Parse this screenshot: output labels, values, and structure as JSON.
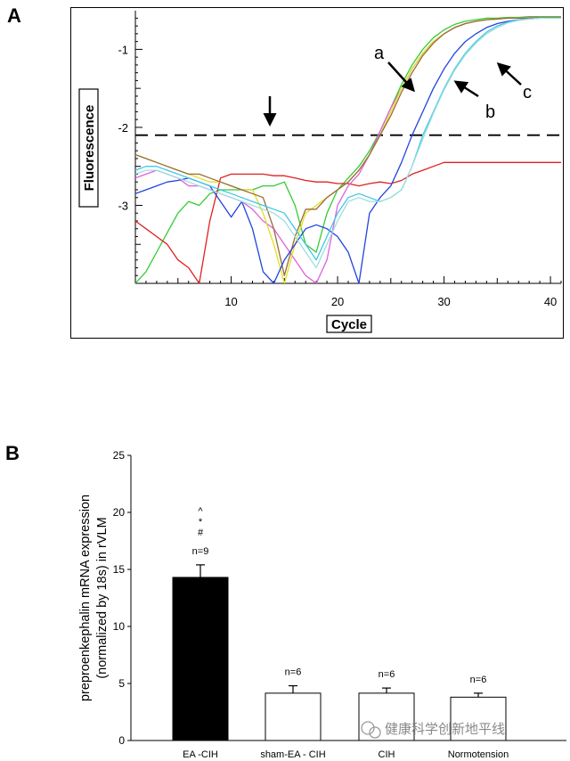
{
  "panels": {
    "a": "A",
    "b": "B"
  },
  "watermark": {
    "text": "健康科学创新地平线"
  },
  "chart_data": [
    {
      "type": "line",
      "xlabel": "Cycle",
      "ylabel": "Fluorescence",
      "x_ticks": [
        10,
        20,
        30,
        40
      ],
      "y_ticks": [
        -1,
        -2,
        -3
      ],
      "xlim": [
        1,
        41
      ],
      "ylim": [
        -4.0,
        -0.55
      ],
      "threshold": -2.1,
      "annotations": [
        "a",
        "b",
        "c"
      ],
      "series": [
        {
          "color": "#33cc33",
          "x": [
            1,
            2,
            3,
            4,
            5,
            6,
            7,
            8,
            9,
            10,
            11,
            12,
            13,
            14,
            15,
            16,
            17,
            18,
            19,
            20,
            21,
            22,
            23,
            24,
            25,
            26,
            27,
            28,
            29,
            30,
            31,
            32,
            33,
            34,
            35,
            36,
            37,
            38,
            39,
            40,
            41
          ],
          "values": [
            -4.0,
            -3.85,
            -3.6,
            -3.35,
            -3.1,
            -2.95,
            -3.0,
            -2.85,
            -2.8,
            -2.8,
            -2.8,
            -2.8,
            -2.75,
            -2.75,
            -2.7,
            -3.0,
            -3.5,
            -3.6,
            -3.1,
            -2.8,
            -2.65,
            -2.5,
            -2.3,
            -2.05,
            -1.75,
            -1.45,
            -1.2,
            -1.0,
            -0.85,
            -0.75,
            -0.68,
            -0.64,
            -0.62,
            -0.6,
            -0.6,
            -0.59,
            -0.59,
            -0.58,
            -0.58,
            -0.58,
            -0.58
          ]
        },
        {
          "color": "#e02020",
          "x": [
            1,
            2,
            3,
            4,
            5,
            6,
            7,
            8,
            9,
            10,
            11,
            12,
            13,
            14,
            15,
            16,
            17,
            18,
            19,
            20,
            21,
            22,
            23,
            24,
            25,
            26,
            27,
            28,
            29,
            30,
            31,
            32,
            33,
            34,
            35,
            36,
            37,
            38,
            39,
            40,
            41
          ],
          "values": [
            -3.2,
            -3.3,
            -3.4,
            -3.5,
            -3.7,
            -3.8,
            -4.0,
            -3.2,
            -2.65,
            -2.6,
            -2.6,
            -2.6,
            -2.6,
            -2.62,
            -2.62,
            -2.65,
            -2.68,
            -2.7,
            -2.7,
            -2.72,
            -2.72,
            -2.75,
            -2.72,
            -2.7,
            -2.72,
            -2.68,
            -2.6,
            -2.55,
            -2.5,
            -2.45,
            -2.45,
            -2.45,
            -2.45,
            -2.45,
            -2.45,
            -2.45,
            -2.45,
            -2.45,
            -2.45,
            -2.45,
            -2.45
          ]
        },
        {
          "color": "#e060e0",
          "x": [
            1,
            2,
            3,
            4,
            5,
            6,
            7,
            8,
            9,
            10,
            11,
            12,
            13,
            14,
            15,
            16,
            17,
            18,
            19,
            20,
            21,
            22,
            23,
            24,
            25,
            26,
            27,
            28,
            29,
            30,
            31,
            32,
            33,
            34,
            35,
            36,
            37,
            38,
            39,
            40,
            41
          ],
          "values": [
            -2.65,
            -2.6,
            -2.55,
            -2.6,
            -2.65,
            -2.75,
            -2.75,
            -2.8,
            -2.85,
            -2.9,
            -2.95,
            -3.05,
            -3.2,
            -3.3,
            -3.5,
            -3.7,
            -3.9,
            -4.0,
            -3.7,
            -3.0,
            -2.75,
            -2.6,
            -2.35,
            -2.05,
            -1.75,
            -1.5,
            -1.25,
            -1.05,
            -0.9,
            -0.8,
            -0.72,
            -0.67,
            -0.64,
            -0.62,
            -0.61,
            -0.6,
            -0.6,
            -0.59,
            -0.59,
            -0.59,
            -0.59
          ]
        },
        {
          "color": "#e0e020",
          "x": [
            1,
            2,
            3,
            4,
            5,
            6,
            7,
            8,
            9,
            10,
            11,
            12,
            13,
            14,
            15,
            16,
            17,
            18,
            19,
            20,
            21,
            22,
            23,
            24,
            25,
            26,
            27,
            28,
            29,
            30,
            31,
            32,
            33,
            34,
            35,
            36,
            37,
            38,
            39,
            40,
            41
          ],
          "values": [
            -2.35,
            -2.4,
            -2.45,
            -2.5,
            -2.55,
            -2.6,
            -2.65,
            -2.7,
            -2.7,
            -2.75,
            -2.8,
            -2.8,
            -3.1,
            -3.5,
            -4.0,
            -3.5,
            -3.1,
            -3.0,
            -2.9,
            -2.8,
            -2.7,
            -2.55,
            -2.35,
            -2.1,
            -1.8,
            -1.5,
            -1.25,
            -1.05,
            -0.9,
            -0.8,
            -0.72,
            -0.67,
            -0.64,
            -0.62,
            -0.61,
            -0.6,
            -0.6,
            -0.6,
            -0.59,
            -0.59,
            -0.59
          ]
        },
        {
          "color": "#9a6a3a",
          "x": [
            1,
            2,
            3,
            4,
            5,
            6,
            7,
            8,
            9,
            10,
            11,
            12,
            13,
            14,
            15,
            16,
            17,
            18,
            19,
            20,
            21,
            22,
            23,
            24,
            25,
            26,
            27,
            28,
            29,
            30,
            31,
            32,
            33,
            34,
            35,
            36,
            37,
            38,
            39,
            40,
            41
          ],
          "values": [
            -2.35,
            -2.4,
            -2.45,
            -2.5,
            -2.55,
            -2.6,
            -2.6,
            -2.65,
            -2.7,
            -2.75,
            -2.8,
            -2.85,
            -2.9,
            -3.3,
            -3.9,
            -3.4,
            -3.05,
            -3.05,
            -2.9,
            -2.8,
            -2.7,
            -2.55,
            -2.35,
            -2.1,
            -1.85,
            -1.55,
            -1.3,
            -1.08,
            -0.92,
            -0.8,
            -0.72,
            -0.67,
            -0.64,
            -0.62,
            -0.61,
            -0.6,
            -0.6,
            -0.6,
            -0.59,
            -0.59,
            -0.59
          ]
        },
        {
          "color": "#2244dd",
          "x": [
            1,
            2,
            3,
            4,
            5,
            6,
            7,
            8,
            9,
            10,
            11,
            12,
            13,
            14,
            15,
            16,
            17,
            18,
            19,
            20,
            21,
            22,
            23,
            24,
            25,
            26,
            27,
            28,
            29,
            30,
            31,
            32,
            33,
            34,
            35,
            36,
            37,
            38,
            39,
            40,
            41
          ],
          "values": [
            -2.85,
            -2.8,
            -2.75,
            -2.7,
            -2.68,
            -2.65,
            -2.7,
            -2.75,
            -2.95,
            -3.15,
            -2.95,
            -3.3,
            -3.85,
            -4.0,
            -3.7,
            -3.5,
            -3.3,
            -3.25,
            -3.3,
            -3.4,
            -3.6,
            -4.0,
            -3.1,
            -2.9,
            -2.75,
            -2.45,
            -2.1,
            -1.8,
            -1.5,
            -1.25,
            -1.05,
            -0.9,
            -0.8,
            -0.72,
            -0.67,
            -0.64,
            -0.62,
            -0.61,
            -0.6,
            -0.6,
            -0.6
          ]
        },
        {
          "color": "#40c8e8",
          "x": [
            1,
            2,
            3,
            4,
            5,
            6,
            7,
            8,
            9,
            10,
            11,
            12,
            13,
            14,
            15,
            16,
            17,
            18,
            19,
            20,
            21,
            22,
            23,
            24,
            25,
            26,
            27,
            28,
            29,
            30,
            31,
            32,
            33,
            34,
            35,
            36,
            37,
            38,
            39,
            40,
            41
          ],
          "values": [
            -2.55,
            -2.5,
            -2.5,
            -2.55,
            -2.6,
            -2.65,
            -2.7,
            -2.75,
            -2.8,
            -2.85,
            -2.9,
            -2.95,
            -3.0,
            -3.05,
            -3.1,
            -3.3,
            -3.5,
            -3.7,
            -3.4,
            -3.1,
            -2.9,
            -2.85,
            -2.9,
            -2.95,
            -2.9,
            -2.8,
            -2.5,
            -2.1,
            -1.8,
            -1.5,
            -1.25,
            -1.05,
            -0.9,
            -0.78,
            -0.7,
            -0.65,
            -0.62,
            -0.61,
            -0.6,
            -0.6,
            -0.6
          ]
        },
        {
          "color": "#a0dede",
          "x": [
            1,
            2,
            3,
            4,
            5,
            6,
            7,
            8,
            9,
            10,
            11,
            12,
            13,
            14,
            15,
            16,
            17,
            18,
            19,
            20,
            21,
            22,
            23,
            24,
            25,
            26,
            27,
            28,
            29,
            30,
            31,
            32,
            33,
            34,
            35,
            36,
            37,
            38,
            39,
            40,
            41
          ],
          "values": [
            -2.6,
            -2.55,
            -2.55,
            -2.6,
            -2.65,
            -2.7,
            -2.75,
            -2.8,
            -2.85,
            -2.9,
            -2.95,
            -3.0,
            -3.05,
            -3.1,
            -3.2,
            -3.4,
            -3.6,
            -3.8,
            -3.5,
            -3.2,
            -2.95,
            -2.9,
            -2.95,
            -2.95,
            -2.9,
            -2.8,
            -2.5,
            -2.15,
            -1.82,
            -1.52,
            -1.27,
            -1.07,
            -0.92,
            -0.8,
            -0.72,
            -0.66,
            -0.63,
            -0.61,
            -0.6,
            -0.6,
            -0.6
          ]
        }
      ]
    },
    {
      "type": "bar",
      "ylabel_line1": "preproenkephalin mRNA expression",
      "ylabel_line2": "(normalized by 18s) in rVLM",
      "ylim": [
        0,
        25
      ],
      "y_ticks": [
        0,
        5,
        10,
        15,
        20,
        25
      ],
      "categories": [
        "EA -CIH",
        "sham-EA - CIH",
        "CIH",
        "Normotension"
      ],
      "values": [
        14.3,
        4.15,
        4.15,
        3.8
      ],
      "errors": [
        1.1,
        0.65,
        0.45,
        0.35
      ],
      "fills": [
        "#000000",
        "#ffffff",
        "#ffffff",
        "#ffffff"
      ],
      "n_labels": [
        "n=9",
        "n=6",
        "n=6",
        "n=6"
      ],
      "significance": [
        "^",
        "*",
        "#"
      ]
    }
  ]
}
